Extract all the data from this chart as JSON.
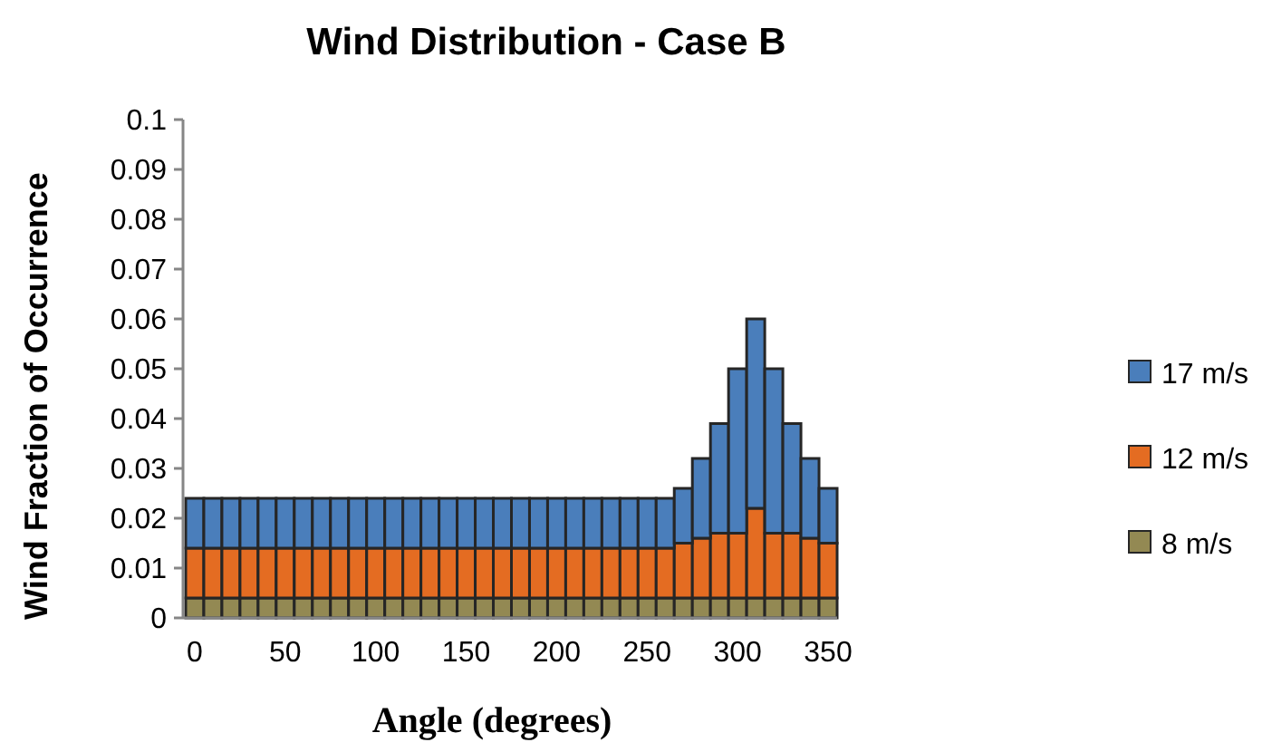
{
  "chart_data": {
    "type": "bar",
    "title": "Wind Distribution - Case B",
    "xlabel": "Angle (degrees)",
    "ylabel": "Wind Fraction of Occurrence",
    "stacked": true,
    "legend": "right",
    "grid": false,
    "categories": [
      "0",
      null,
      null,
      null,
      null,
      "50",
      null,
      null,
      null,
      null,
      "100",
      null,
      null,
      null,
      null,
      "150",
      null,
      null,
      null,
      null,
      "200",
      null,
      null,
      null,
      null,
      "250",
      null,
      null,
      null,
      null,
      "300",
      null,
      null,
      null,
      null,
      "350"
    ],
    "ylim": [
      0,
      0.1
    ],
    "yticks": [
      0,
      0.01,
      0.02,
      0.03,
      0.04,
      0.05,
      0.06,
      0.07,
      0.08,
      0.09,
      0.1
    ],
    "series": [
      {
        "name": "8 m/s",
        "color": "#938953",
        "values": [
          0.004,
          0.004,
          0.004,
          0.004,
          0.004,
          0.004,
          0.004,
          0.004,
          0.004,
          0.004,
          0.004,
          0.004,
          0.004,
          0.004,
          0.004,
          0.004,
          0.004,
          0.004,
          0.004,
          0.004,
          0.004,
          0.004,
          0.004,
          0.004,
          0.004,
          0.004,
          0.004,
          0.004,
          0.004,
          0.004,
          0.004,
          0.004,
          0.004,
          0.004,
          0.004,
          0.004
        ]
      },
      {
        "name": "12 m/s",
        "color": "#e46c22",
        "values": [
          0.01,
          0.01,
          0.01,
          0.01,
          0.01,
          0.01,
          0.01,
          0.01,
          0.01,
          0.01,
          0.01,
          0.01,
          0.01,
          0.01,
          0.01,
          0.01,
          0.01,
          0.01,
          0.01,
          0.01,
          0.01,
          0.01,
          0.01,
          0.01,
          0.01,
          0.01,
          0.01,
          0.011,
          0.012,
          0.013,
          0.013,
          0.018,
          0.013,
          0.013,
          0.012,
          0.011
        ]
      },
      {
        "name": "17 m/s",
        "color": "#4a7ebb",
        "values": [
          0.01,
          0.01,
          0.01,
          0.01,
          0.01,
          0.01,
          0.01,
          0.01,
          0.01,
          0.01,
          0.01,
          0.01,
          0.01,
          0.01,
          0.01,
          0.01,
          0.01,
          0.01,
          0.01,
          0.01,
          0.01,
          0.01,
          0.01,
          0.01,
          0.01,
          0.01,
          0.01,
          0.011,
          0.016,
          0.022,
          0.033,
          0.038,
          0.033,
          0.022,
          0.016,
          0.011
        ]
      }
    ]
  }
}
